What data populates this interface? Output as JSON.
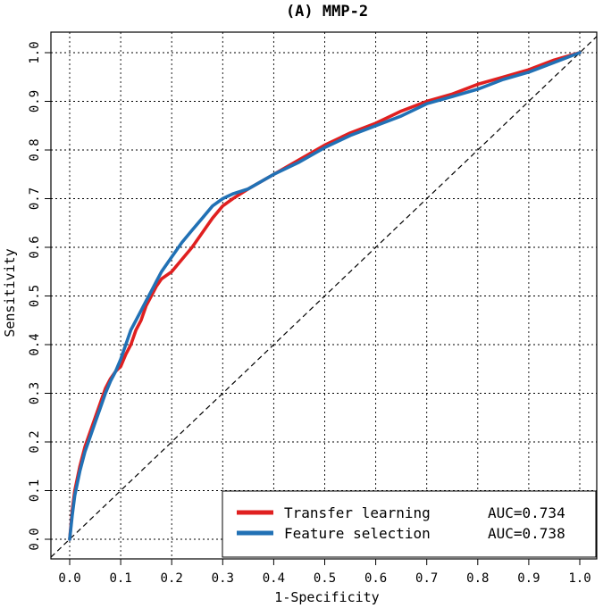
{
  "chart_data": {
    "type": "line",
    "title": "(A) MMP-2",
    "xlabel": "1-Specificity",
    "ylabel": "Sensitivity",
    "xlim": [
      0,
      1
    ],
    "ylim": [
      0,
      1
    ],
    "x_ticks": [
      "0.0",
      "0.1",
      "0.2",
      "0.3",
      "0.4",
      "0.5",
      "0.6",
      "0.7",
      "0.8",
      "0.9",
      "1.0"
    ],
    "y_ticks": [
      "0.0",
      "0.1",
      "0.2",
      "0.3",
      "0.4",
      "0.5",
      "0.6",
      "0.7",
      "0.8",
      "0.9",
      "1.0"
    ],
    "grid": true,
    "reference_line": "diagonal",
    "legend_position": "bottom-right",
    "series": [
      {
        "name": "Transfer learning",
        "auc_label": "AUC=0.734",
        "color": "#e02020",
        "points": [
          [
            0,
            0
          ],
          [
            0.005,
            0.06
          ],
          [
            0.01,
            0.1
          ],
          [
            0.02,
            0.15
          ],
          [
            0.03,
            0.19
          ],
          [
            0.04,
            0.22
          ],
          [
            0.05,
            0.25
          ],
          [
            0.06,
            0.28
          ],
          [
            0.07,
            0.31
          ],
          [
            0.08,
            0.33
          ],
          [
            0.09,
            0.345
          ],
          [
            0.1,
            0.355
          ],
          [
            0.11,
            0.38
          ],
          [
            0.12,
            0.4
          ],
          [
            0.13,
            0.43
          ],
          [
            0.14,
            0.45
          ],
          [
            0.15,
            0.48
          ],
          [
            0.16,
            0.5
          ],
          [
            0.17,
            0.52
          ],
          [
            0.18,
            0.535
          ],
          [
            0.2,
            0.55
          ],
          [
            0.22,
            0.575
          ],
          [
            0.24,
            0.6
          ],
          [
            0.26,
            0.63
          ],
          [
            0.28,
            0.66
          ],
          [
            0.3,
            0.685
          ],
          [
            0.32,
            0.7
          ],
          [
            0.35,
            0.72
          ],
          [
            0.4,
            0.75
          ],
          [
            0.45,
            0.78
          ],
          [
            0.5,
            0.81
          ],
          [
            0.55,
            0.835
          ],
          [
            0.6,
            0.855
          ],
          [
            0.65,
            0.88
          ],
          [
            0.7,
            0.9
          ],
          [
            0.75,
            0.915
          ],
          [
            0.8,
            0.935
          ],
          [
            0.85,
            0.95
          ],
          [
            0.9,
            0.965
          ],
          [
            0.95,
            0.985
          ],
          [
            1.0,
            1.0
          ]
        ]
      },
      {
        "name": "Feature selection",
        "auc_label": "AUC=0.738",
        "color": "#2171b5",
        "points": [
          [
            0,
            0
          ],
          [
            0.005,
            0.05
          ],
          [
            0.01,
            0.09
          ],
          [
            0.02,
            0.14
          ],
          [
            0.03,
            0.18
          ],
          [
            0.04,
            0.21
          ],
          [
            0.05,
            0.24
          ],
          [
            0.06,
            0.27
          ],
          [
            0.07,
            0.3
          ],
          [
            0.08,
            0.325
          ],
          [
            0.09,
            0.345
          ],
          [
            0.1,
            0.37
          ],
          [
            0.11,
            0.4
          ],
          [
            0.12,
            0.43
          ],
          [
            0.13,
            0.45
          ],
          [
            0.14,
            0.47
          ],
          [
            0.15,
            0.49
          ],
          [
            0.16,
            0.51
          ],
          [
            0.17,
            0.53
          ],
          [
            0.18,
            0.55
          ],
          [
            0.2,
            0.58
          ],
          [
            0.22,
            0.61
          ],
          [
            0.24,
            0.635
          ],
          [
            0.26,
            0.66
          ],
          [
            0.28,
            0.685
          ],
          [
            0.3,
            0.7
          ],
          [
            0.32,
            0.71
          ],
          [
            0.35,
            0.72
          ],
          [
            0.4,
            0.75
          ],
          [
            0.45,
            0.775
          ],
          [
            0.5,
            0.805
          ],
          [
            0.55,
            0.83
          ],
          [
            0.6,
            0.85
          ],
          [
            0.65,
            0.87
          ],
          [
            0.7,
            0.895
          ],
          [
            0.75,
            0.91
          ],
          [
            0.8,
            0.925
          ],
          [
            0.85,
            0.945
          ],
          [
            0.9,
            0.96
          ],
          [
            0.95,
            0.98
          ],
          [
            1.0,
            1.0
          ]
        ]
      }
    ]
  }
}
